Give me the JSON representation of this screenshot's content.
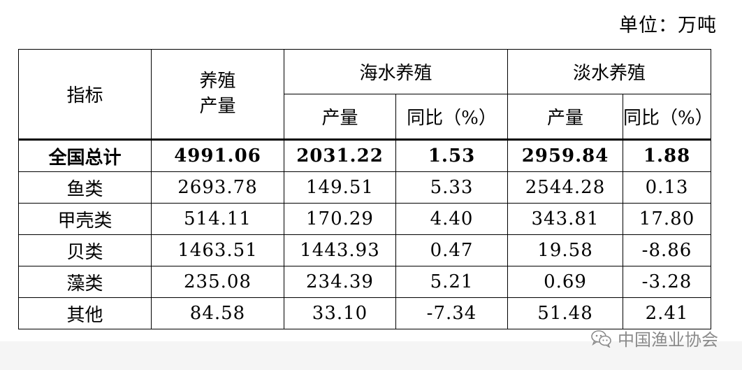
{
  "unit_label": "单位：万吨",
  "headers": {
    "indicator": "指标",
    "aquaculture_output": "养殖\n产量",
    "marine": "海水养殖",
    "freshwater": "淡水养殖",
    "output": "产量",
    "yoy": "同比（%）"
  },
  "rows": [
    {
      "name": "全国总计",
      "total": "4991.06",
      "marine_output": "2031.22",
      "marine_yoy": "1.53",
      "fresh_output": "2959.84",
      "fresh_yoy": "1.88"
    },
    {
      "name": "鱼类",
      "total": "2693.78",
      "marine_output": "149.51",
      "marine_yoy": "5.33",
      "fresh_output": "2544.28",
      "fresh_yoy": "0.13"
    },
    {
      "name": "甲壳类",
      "total": "514.11",
      "marine_output": "170.29",
      "marine_yoy": "4.40",
      "fresh_output": "343.81",
      "fresh_yoy": "17.80"
    },
    {
      "name": "贝类",
      "total": "1463.51",
      "marine_output": "1443.93",
      "marine_yoy": "0.47",
      "fresh_output": "19.58",
      "fresh_yoy": "-8.86"
    },
    {
      "name": "藻类",
      "total": "235.08",
      "marine_output": "234.39",
      "marine_yoy": "5.21",
      "fresh_output": "0.69",
      "fresh_yoy": "-3.28"
    },
    {
      "name": "其他",
      "total": "84.58",
      "marine_output": "33.10",
      "marine_yoy": "-7.34",
      "fresh_output": "51.48",
      "fresh_yoy": "2.41"
    }
  ],
  "watermark": {
    "icon": "wechat-icon",
    "text": "中国渔业协会"
  }
}
